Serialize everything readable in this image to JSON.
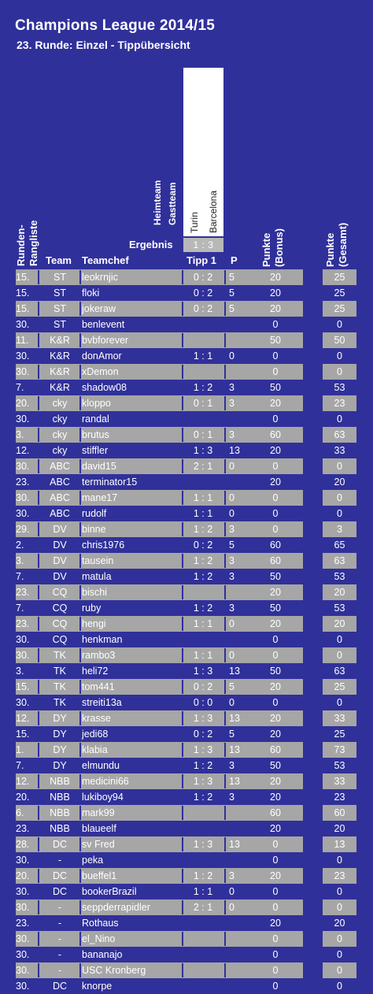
{
  "title": "Champions League 2014/15",
  "subtitle": "23. Runde: Einzel - Tippübersicht",
  "headers": {
    "heimteam": "Heimteam",
    "gastteam": "Gastteam",
    "home": "Turin",
    "away": "Barcelona",
    "ergebnis_label": "Ergebnis",
    "ergebnis_value": "1 : 3",
    "runden_rangliste": "Runden-Rangliste",
    "team": "Team",
    "teamchef": "Teamchef",
    "tipp": "Tipp 1",
    "p": "P",
    "punkte_bonus": "Punkte (Bonus)",
    "punkte_gesamt": "Punkte (Gesamt)"
  },
  "rows": [
    {
      "rank": "15.",
      "team": "ST",
      "chef": "leokrnjic",
      "tipp": "0 : 2",
      "p": "5",
      "bonus": "20",
      "total": "25"
    },
    {
      "rank": "15.",
      "team": "ST",
      "chef": "floki",
      "tipp": "0 : 2",
      "p": "5",
      "bonus": "20",
      "total": "25"
    },
    {
      "rank": "15.",
      "team": "ST",
      "chef": "jokeraw",
      "tipp": "0 : 2",
      "p": "5",
      "bonus": "20",
      "total": "25"
    },
    {
      "rank": "30.",
      "team": "ST",
      "chef": "benlevent",
      "tipp": "",
      "p": "",
      "bonus": "0",
      "total": "0"
    },
    {
      "rank": "11.",
      "team": "K&R",
      "chef": "bvbforever",
      "tipp": "",
      "p": "",
      "bonus": "50",
      "total": "50"
    },
    {
      "rank": "30.",
      "team": "K&R",
      "chef": "donAmor",
      "tipp": "1 : 1",
      "p": "0",
      "bonus": "0",
      "total": "0"
    },
    {
      "rank": "30.",
      "team": "K&R",
      "chef": "xDemon",
      "tipp": "",
      "p": "",
      "bonus": "0",
      "total": "0"
    },
    {
      "rank": "7.",
      "team": "K&R",
      "chef": "shadow08",
      "tipp": "1 : 2",
      "p": "3",
      "bonus": "50",
      "total": "53"
    },
    {
      "rank": "20.",
      "team": "cky",
      "chef": "kloppo",
      "tipp": "0 : 1",
      "p": "3",
      "bonus": "20",
      "total": "23"
    },
    {
      "rank": "30.",
      "team": "cky",
      "chef": "randal",
      "tipp": "",
      "p": "",
      "bonus": "0",
      "total": "0"
    },
    {
      "rank": "3.",
      "team": "cky",
      "chef": "brutus",
      "tipp": "0 : 1",
      "p": "3",
      "bonus": "60",
      "total": "63"
    },
    {
      "rank": "12.",
      "team": "cky",
      "chef": "stiffler",
      "tipp": "1 : 3",
      "p": "13",
      "bonus": "20",
      "total": "33"
    },
    {
      "rank": "30.",
      "team": "ABC",
      "chef": "david15",
      "tipp": "2 : 1",
      "p": "0",
      "bonus": "0",
      "total": "0"
    },
    {
      "rank": "23.",
      "team": "ABC",
      "chef": "terminator15",
      "tipp": "",
      "p": "",
      "bonus": "20",
      "total": "20"
    },
    {
      "rank": "30.",
      "team": "ABC",
      "chef": "mane17",
      "tipp": "1 : 1",
      "p": "0",
      "bonus": "0",
      "total": "0"
    },
    {
      "rank": "30.",
      "team": "ABC",
      "chef": "rudolf",
      "tipp": "1 : 1",
      "p": "0",
      "bonus": "0",
      "total": "0"
    },
    {
      "rank": "29.",
      "team": "DV",
      "chef": "binne",
      "tipp": "1 : 2",
      "p": "3",
      "bonus": "0",
      "total": "3"
    },
    {
      "rank": "2.",
      "team": "DV",
      "chef": "chris1976",
      "tipp": "0 : 2",
      "p": "5",
      "bonus": "60",
      "total": "65"
    },
    {
      "rank": "3.",
      "team": "DV",
      "chef": "tausein",
      "tipp": "1 : 2",
      "p": "3",
      "bonus": "60",
      "total": "63"
    },
    {
      "rank": "7.",
      "team": "DV",
      "chef": "matula",
      "tipp": "1 : 2",
      "p": "3",
      "bonus": "50",
      "total": "53"
    },
    {
      "rank": "23.",
      "team": "CQ",
      "chef": "bischi",
      "tipp": "",
      "p": "",
      "bonus": "20",
      "total": "20"
    },
    {
      "rank": "7.",
      "team": "CQ",
      "chef": "ruby",
      "tipp": "1 : 2",
      "p": "3",
      "bonus": "50",
      "total": "53"
    },
    {
      "rank": "23.",
      "team": "CQ",
      "chef": "hengi",
      "tipp": "1 : 1",
      "p": "0",
      "bonus": "20",
      "total": "20"
    },
    {
      "rank": "30.",
      "team": "CQ",
      "chef": "henkman",
      "tipp": "",
      "p": "",
      "bonus": "0",
      "total": "0"
    },
    {
      "rank": "30.",
      "team": "TK",
      "chef": "rambo3",
      "tipp": "1 : 1",
      "p": "0",
      "bonus": "0",
      "total": "0"
    },
    {
      "rank": "3.",
      "team": "TK",
      "chef": "heli72",
      "tipp": "1 : 3",
      "p": "13",
      "bonus": "50",
      "total": "63"
    },
    {
      "rank": "15.",
      "team": "TK",
      "chef": "tom441",
      "tipp": "0 : 2",
      "p": "5",
      "bonus": "20",
      "total": "25"
    },
    {
      "rank": "30.",
      "team": "TK",
      "chef": "streiti13a",
      "tipp": "0 : 0",
      "p": "0",
      "bonus": "0",
      "total": "0"
    },
    {
      "rank": "12.",
      "team": "DY",
      "chef": "krasse",
      "tipp": "1 : 3",
      "p": "13",
      "bonus": "20",
      "total": "33"
    },
    {
      "rank": "15.",
      "team": "DY",
      "chef": "jedi68",
      "tipp": "0 : 2",
      "p": "5",
      "bonus": "20",
      "total": "25"
    },
    {
      "rank": "1.",
      "team": "DY",
      "chef": "klabia",
      "tipp": "1 : 3",
      "p": "13",
      "bonus": "60",
      "total": "73"
    },
    {
      "rank": "7.",
      "team": "DY",
      "chef": "elmundu",
      "tipp": "1 : 2",
      "p": "3",
      "bonus": "50",
      "total": "53"
    },
    {
      "rank": "12.",
      "team": "NBB",
      "chef": "medicini66",
      "tipp": "1 : 3",
      "p": "13",
      "bonus": "20",
      "total": "33"
    },
    {
      "rank": "20.",
      "team": "NBB",
      "chef": "lukiboy94",
      "tipp": "1 : 2",
      "p": "3",
      "bonus": "20",
      "total": "23"
    },
    {
      "rank": "6.",
      "team": "NBB",
      "chef": "mark99",
      "tipp": "",
      "p": "",
      "bonus": "60",
      "total": "60"
    },
    {
      "rank": "23.",
      "team": "NBB",
      "chef": "blaueelf",
      "tipp": "",
      "p": "",
      "bonus": "20",
      "total": "20"
    },
    {
      "rank": "28.",
      "team": "DC",
      "chef": "sv Fred",
      "tipp": "1 : 3",
      "p": "13",
      "bonus": "0",
      "total": "13"
    },
    {
      "rank": "30.",
      "team": "-",
      "chef": "peka",
      "tipp": "",
      "p": "",
      "bonus": "0",
      "total": "0"
    },
    {
      "rank": "20.",
      "team": "DC",
      "chef": "bueffel1",
      "tipp": "1 : 2",
      "p": "3",
      "bonus": "20",
      "total": "23"
    },
    {
      "rank": "30.",
      "team": "DC",
      "chef": "bookerBrazil",
      "tipp": "1 : 1",
      "p": "0",
      "bonus": "0",
      "total": "0"
    },
    {
      "rank": "30.",
      "team": "-",
      "chef": "seppderrapidler",
      "tipp": "2 : 1",
      "p": "0",
      "bonus": "0",
      "total": "0"
    },
    {
      "rank": "23.",
      "team": "-",
      "chef": "Rothaus",
      "tipp": "",
      "p": "",
      "bonus": "20",
      "total": "20"
    },
    {
      "rank": "30.",
      "team": "-",
      "chef": "el_Nino",
      "tipp": "",
      "p": "",
      "bonus": "0",
      "total": "0"
    },
    {
      "rank": "30.",
      "team": "-",
      "chef": "bananajo",
      "tipp": "",
      "p": "",
      "bonus": "0",
      "total": "0"
    },
    {
      "rank": "30.",
      "team": "-",
      "chef": "USC Kronberg",
      "tipp": "",
      "p": "",
      "bonus": "0",
      "total": "0"
    },
    {
      "rank": "30.",
      "team": "DC",
      "chef": "knorpe",
      "tipp": "",
      "p": "",
      "bonus": "0",
      "total": "0"
    }
  ]
}
